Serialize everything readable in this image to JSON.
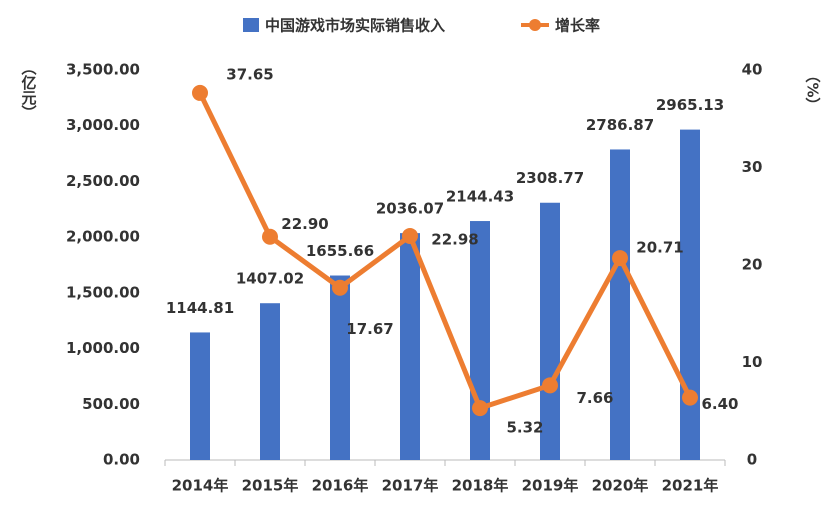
{
  "chart_data": {
    "type": "bar-line",
    "categories": [
      "2014年",
      "2015年",
      "2016年",
      "2017年",
      "2018年",
      "2019年",
      "2020年",
      "2021年"
    ],
    "series": [
      {
        "name": "中国游戏市场实际销售收入",
        "type": "bar",
        "color": "#4472c4",
        "values": [
          1144.81,
          1407.02,
          1655.66,
          2036.07,
          2144.43,
          2308.77,
          2786.87,
          2965.13
        ],
        "value_labels": [
          "1144.81",
          "1407.02",
          "1655.66",
          "2036.07",
          "2144.43",
          "2308.77",
          "2786.87",
          "2965.13"
        ]
      },
      {
        "name": "增长率",
        "type": "line",
        "axis": "y2",
        "color": "#ed7d31",
        "values": [
          37.65,
          22.9,
          17.67,
          22.98,
          5.32,
          7.66,
          20.71,
          6.4
        ],
        "value_labels": [
          "37.65",
          "22.90",
          "17.67",
          "22.98",
          "5.32",
          "7.66",
          "20.71",
          "6.40"
        ]
      }
    ],
    "ylabel": "（亿元）",
    "y2label": "（%）",
    "ylim": [
      0,
      3500
    ],
    "yticks": [
      {
        "value": 0,
        "label": "0.00"
      },
      {
        "value": 500,
        "label": "500.00"
      },
      {
        "value": 1000,
        "label": "1,000.00"
      },
      {
        "value": 1500,
        "label": "1,500.00"
      },
      {
        "value": 2000,
        "label": "2,000.00"
      },
      {
        "value": 2500,
        "label": "2,500.00"
      },
      {
        "value": 3000,
        "label": "3,000.00"
      },
      {
        "value": 3500,
        "label": "3,500.00"
      }
    ],
    "y2lim": [
      0,
      40
    ],
    "y2ticks": [
      0,
      10,
      20,
      30,
      40
    ],
    "legend": "top",
    "grid": false
  }
}
